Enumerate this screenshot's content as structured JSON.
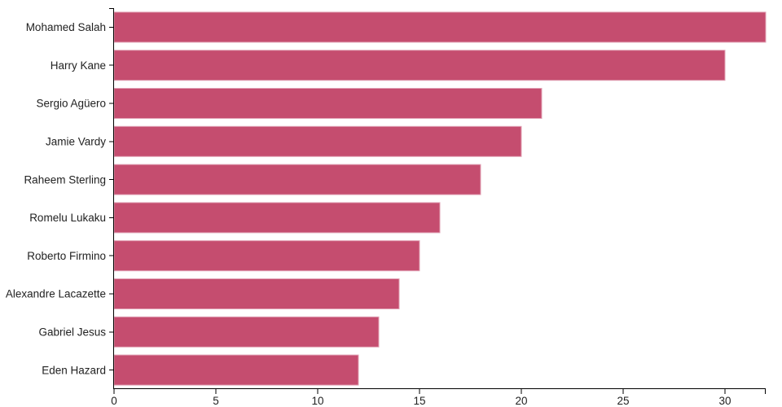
{
  "chart_data": {
    "type": "bar",
    "orientation": "horizontal",
    "title": "",
    "xlabel": "",
    "ylabel": "",
    "categories": [
      "Mohamed Salah",
      "Harry Kane",
      "Sergio Agüero",
      "Jamie Vardy",
      "Raheem Sterling",
      "Romelu Lukaku",
      "Roberto Firmino",
      "Alexandre Lacazette",
      "Gabriel Jesus",
      "Eden Hazard"
    ],
    "values": [
      32,
      30,
      21,
      20,
      18,
      16,
      15,
      14,
      13,
      12
    ],
    "xlim": [
      0,
      32
    ],
    "x_ticks": [
      0,
      5,
      10,
      15,
      20,
      25,
      30
    ],
    "x_tick_labels": [
      "0",
      "5",
      "10",
      "15",
      "20",
      "25",
      "30"
    ],
    "grid": false,
    "legend": false,
    "colors": {
      "bar_fill": "#c54d6f",
      "bar_stroke": "#e2a3b6",
      "axis_line": "#000000",
      "tick_label": "#222222",
      "background": "#ffffff"
    }
  }
}
